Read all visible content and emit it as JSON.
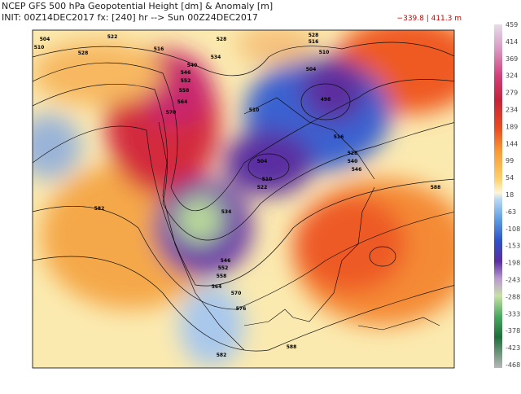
{
  "header": {
    "title": "NCEP GFS 500 hPa Geopotential Height [dm] & Anomaly [m]",
    "init": "INIT: 00Z14DEC2017 fx: [240] hr --> Sun 00Z24DEC2017",
    "range": "−339.8 | 411.3 m"
  },
  "colorbar": {
    "labels": [
      459,
      414,
      369,
      324,
      279,
      234,
      189,
      144,
      99,
      54,
      18,
      -63,
      -108,
      -153,
      -198,
      -243,
      -288,
      -333,
      -378,
      -423,
      -468
    ]
  },
  "contour_labels": [
    504,
    510,
    522,
    528,
    516,
    528,
    534,
    540,
    546,
    552,
    558,
    564,
    570,
    510,
    504,
    498,
    510,
    516,
    504,
    510,
    522,
    534,
    546,
    552,
    558,
    564,
    570,
    576,
    582,
    588,
    582,
    588,
    528,
    516,
    546,
    540,
    528
  ]
}
